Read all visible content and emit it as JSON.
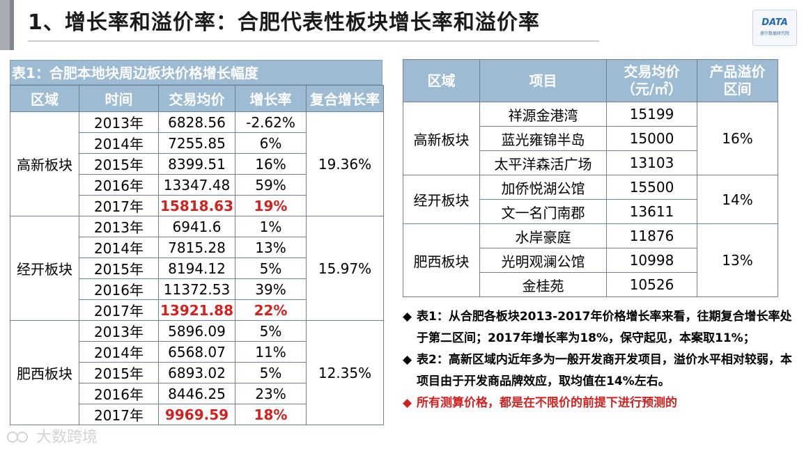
{
  "title": "1、增长率和溢价率：合肥代表性板块增长率和溢价率",
  "logo": {
    "text": "DATA",
    "sub": "睿尔数据研究院"
  },
  "table1": {
    "caption": "表1：合肥本地块周边板块价格增长幅度",
    "headers": [
      "区域",
      "时间",
      "交易均价",
      "增长率",
      "复合增长率"
    ],
    "groups": [
      {
        "region": "高新板块",
        "cagr": "19.36%",
        "rows": [
          {
            "year": "2013年",
            "price": "6828.56",
            "growth": "-2.62%"
          },
          {
            "year": "2014年",
            "price": "7255.85",
            "growth": "6%"
          },
          {
            "year": "2015年",
            "price": "8399.51",
            "growth": "16%"
          },
          {
            "year": "2016年",
            "price": "13347.48",
            "growth": "59%"
          },
          {
            "year": "2017年",
            "price": "15818.63",
            "growth": "19%"
          }
        ]
      },
      {
        "region": "经开板块",
        "cagr": "15.97%",
        "rows": [
          {
            "year": "2013年",
            "price": "6941.6",
            "growth": "1%"
          },
          {
            "year": "2014年",
            "price": "7815.28",
            "growth": "13%"
          },
          {
            "year": "2015年",
            "price": "8194.12",
            "growth": "5%"
          },
          {
            "year": "2016年",
            "price": "11372.53",
            "growth": "39%"
          },
          {
            "year": "2017年",
            "price": "13921.88",
            "growth": "22%"
          }
        ]
      },
      {
        "region": "肥西板块",
        "cagr": "12.35%",
        "rows": [
          {
            "year": "2013年",
            "price": "5896.09",
            "growth": "5%"
          },
          {
            "year": "2014年",
            "price": "6568.07",
            "growth": "11%"
          },
          {
            "year": "2015年",
            "price": "6893.02",
            "growth": "5%"
          },
          {
            "year": "2016年",
            "price": "8446.25",
            "growth": "23%"
          },
          {
            "year": "2017年",
            "price": "9969.59",
            "growth": "18%"
          }
        ]
      }
    ]
  },
  "table2": {
    "headers": {
      "region": "区域",
      "project": "项目",
      "price_line1": "交易均价",
      "price_line2": "（元/㎡）",
      "premium_line1": "产品溢价",
      "premium_line2": "区间"
    },
    "groups": [
      {
        "region": "高新板块",
        "premium": "16%",
        "rows": [
          {
            "project": "祥源金港湾",
            "price": "15199"
          },
          {
            "project": "蓝光雍锦半岛",
            "price": "15000"
          },
          {
            "project": "太平洋森活广场",
            "price": "13103"
          }
        ]
      },
      {
        "region": "经开板块",
        "premium": "14%",
        "rows": [
          {
            "project": "加侨悦湖公馆",
            "price": "15500"
          },
          {
            "project": "文一名门南郡",
            "price": "13611"
          }
        ]
      },
      {
        "region": "肥西板块",
        "premium": "13%",
        "rows": [
          {
            "project": "水岸豪庭",
            "price": "11876"
          },
          {
            "project": "光明观澜公馆",
            "price": "10998"
          },
          {
            "project": "金桂苑",
            "price": "10526"
          }
        ]
      }
    ]
  },
  "notes": {
    "bullet": "◆",
    "note1": "表1：从合肥各板块2013-2017年价格增长率来看，往期复合增长率处于第二区间；2017年增长率为18%，保守起见，本案取11%；",
    "note2": "表2：高新区域内近年多为一般开发商开发项目，溢价水平相对较弱，本项目由于开发商品牌效应，取均值在14%左右。",
    "note3": "所有测算价格，都是在不限价的前提下进行预测的"
  },
  "watermark": "大数跨境",
  "colors": {
    "header_bg": "#9dbcd4",
    "highlight": "#d2221f"
  }
}
